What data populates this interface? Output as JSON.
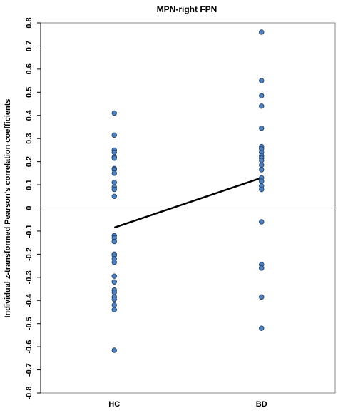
{
  "chart_data": {
    "type": "dot",
    "title": "MPN-right FPN",
    "y_label": "Individual z-transformed Pearson's correlation coefficients",
    "categories": [
      "HC",
      "BD"
    ],
    "groups": [
      {
        "color": "#4f81bd",
        "values": [
          0.41,
          0.315,
          0.25,
          0.24,
          0.22,
          0.215,
          0.17,
          0.165,
          0.15,
          0.11,
          0.09,
          0.08,
          0.05,
          -0.12,
          -0.13,
          -0.145,
          -0.2,
          -0.205,
          -0.22,
          -0.235,
          -0.295,
          -0.32,
          -0.355,
          -0.365,
          -0.385,
          -0.395,
          -0.42,
          -0.44,
          -0.615
        ]
      },
      {
        "color": "#4f81bd",
        "values": [
          0.76,
          0.55,
          0.485,
          0.44,
          0.345,
          0.265,
          0.255,
          0.24,
          0.225,
          0.215,
          0.205,
          0.185,
          0.165,
          0.13,
          0.115,
          0.095,
          0.08,
          -0.06,
          -0.245,
          -0.26,
          -0.385,
          -0.52
        ]
      }
    ],
    "mean_line": [
      -0.085,
      0.13
    ],
    "line_color": "#000000",
    "ylim": [
      -0.8,
      0.8
    ],
    "yticks": [
      -0.8,
      -0.7,
      -0.6,
      -0.5,
      -0.4,
      -0.3,
      -0.2,
      -0.1,
      0,
      0.1,
      0.2,
      0.3,
      0.4,
      0.5,
      0.6,
      0.7,
      0.8
    ]
  }
}
